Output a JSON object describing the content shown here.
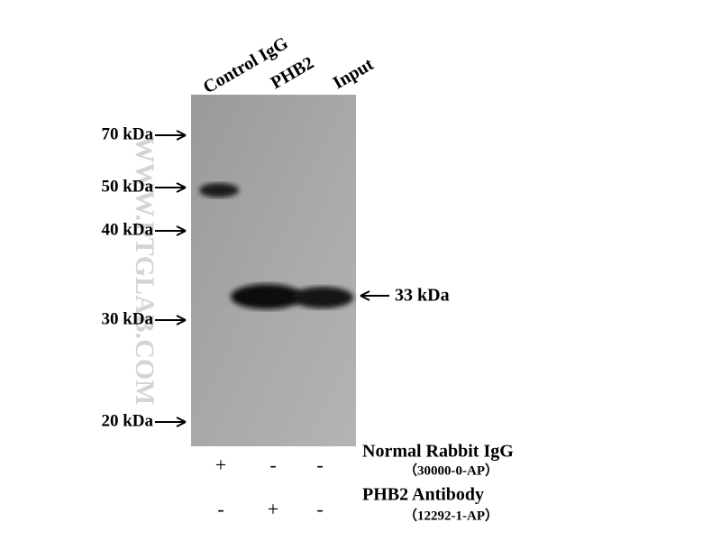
{
  "lanes": [
    "Control IgG",
    "PHB2",
    "Input"
  ],
  "markers": [
    "70 kDa",
    "50 kDa",
    "40 kDa",
    "30 kDa",
    "20 kDa"
  ],
  "band_label": "33 kDa",
  "watermark": "WWW.PTGLAB.COM",
  "reagents": [
    {
      "name": "Normal Rabbit IgG",
      "catalog": "（30000-0-AP）",
      "signs": [
        "+",
        "-",
        "-"
      ]
    },
    {
      "name": "PHB2 Antibody",
      "catalog": "（12292-1-AP）",
      "signs": [
        "-",
        "+",
        "-"
      ]
    }
  ]
}
